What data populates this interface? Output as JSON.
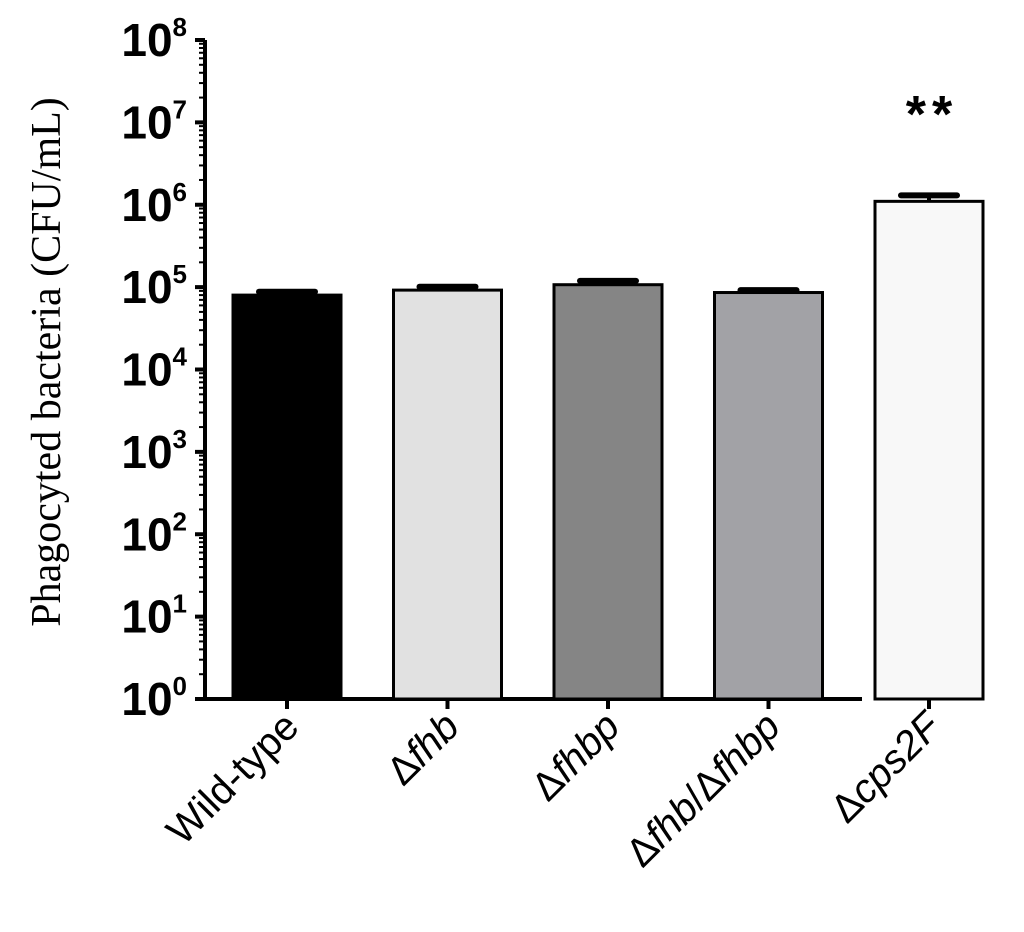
{
  "chart_data": {
    "type": "bar",
    "title": "",
    "ylabel": "Phagocyted bacteria (CFU/mL)",
    "xlabel": "",
    "yscale": "log",
    "ylim": [
      1,
      100000000
    ],
    "yticks": [
      {
        "base": "10",
        "exp": "0",
        "value": 1
      },
      {
        "base": "10",
        "exp": "1",
        "value": 10
      },
      {
        "base": "10",
        "exp": "2",
        "value": 100
      },
      {
        "base": "10",
        "exp": "3",
        "value": 1000
      },
      {
        "base": "10",
        "exp": "4",
        "value": 10000
      },
      {
        "base": "10",
        "exp": "5",
        "value": 100000
      },
      {
        "base": "10",
        "exp": "6",
        "value": 1000000
      },
      {
        "base": "10",
        "exp": "7",
        "value": 10000000
      },
      {
        "base": "10",
        "exp": "8",
        "value": 100000000
      }
    ],
    "categories": [
      "Wild-type",
      "Δfhb",
      "Δfhbp",
      "Δfhb/Δfhbp",
      "Δcps2F"
    ],
    "values": [
      80000,
      92000,
      107000,
      86000,
      1100000
    ],
    "error_upper": [
      88000,
      101000,
      119000,
      92000,
      1300000
    ],
    "bar_colors": [
      "#000000",
      "#e1e1e1",
      "#858585",
      "#a2a2a6",
      "#f8f8f8"
    ],
    "annotations": [
      {
        "category": "Δcps2F",
        "text": "**"
      }
    ],
    "grid": false
  }
}
